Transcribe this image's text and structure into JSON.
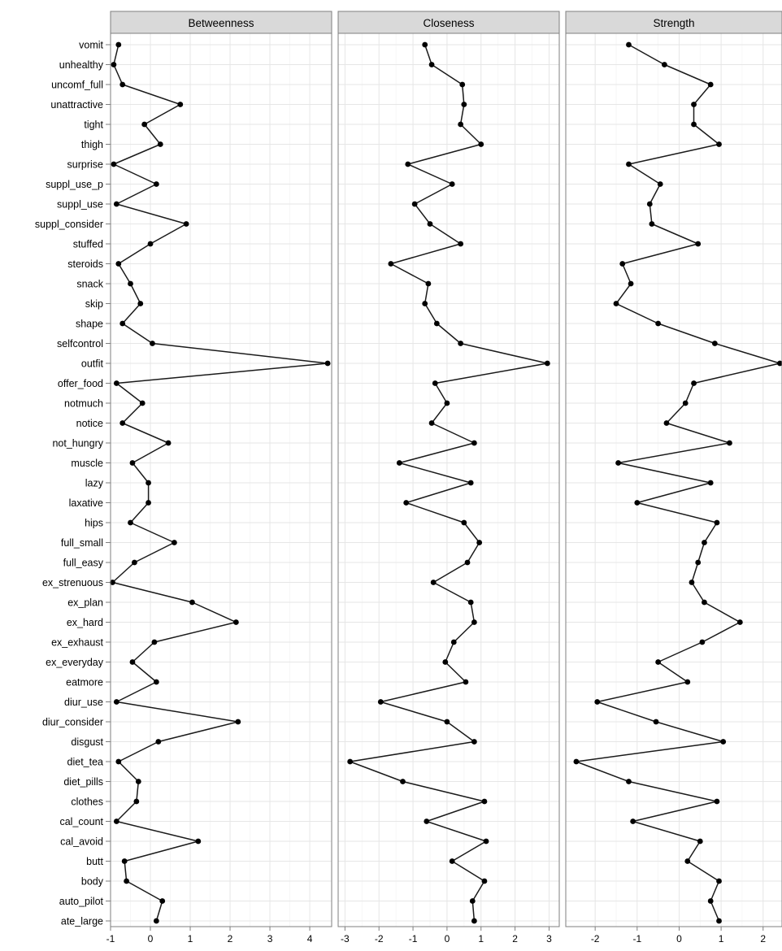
{
  "chart_data": {
    "type": "line",
    "facet_layout": "1 row x 3 panels, shared y axis",
    "grid": true,
    "legend": "none",
    "categories": [
      "vomit",
      "unhealthy",
      "uncomf_full",
      "unattractive",
      "tight",
      "thigh",
      "surprise",
      "suppl_use_p",
      "suppl_use",
      "suppl_consider",
      "stuffed",
      "steroids",
      "snack",
      "skip",
      "shape",
      "selfcontrol",
      "outfit",
      "offer_food",
      "notmuch",
      "notice",
      "not_hungry",
      "muscle",
      "lazy",
      "laxative",
      "hips",
      "full_small",
      "full_easy",
      "ex_strenuous",
      "ex_plan",
      "ex_hard",
      "ex_exhaust",
      "ex_everyday",
      "eatmore",
      "diur_use",
      "diur_consider",
      "disgust",
      "diet_tea",
      "diet_pills",
      "clothes",
      "cal_count",
      "cal_avoid",
      "butt",
      "body",
      "auto_pilot",
      "ate_large"
    ],
    "panels": [
      {
        "name": "Betweenness",
        "xlim": [
          -1.0,
          4.55
        ],
        "xticks": [
          "-1",
          "0",
          "1",
          "2",
          "3",
          "4"
        ],
        "xtick_values": [
          -1,
          0,
          1,
          2,
          3,
          4
        ],
        "values": [
          -0.8,
          -0.92,
          -0.7,
          0.75,
          -0.15,
          0.25,
          -0.92,
          0.15,
          -0.85,
          0.9,
          0.0,
          -0.8,
          -0.5,
          -0.25,
          -0.7,
          0.05,
          4.45,
          -0.85,
          -0.2,
          -0.7,
          0.45,
          -0.45,
          -0.05,
          -0.05,
          -0.5,
          0.6,
          -0.4,
          -0.95,
          1.05,
          2.15,
          0.1,
          -0.45,
          0.15,
          -0.85,
          2.2,
          0.2,
          -0.8,
          -0.3,
          -0.35,
          -0.85,
          1.2,
          -0.65,
          -0.6,
          0.3,
          0.15
        ]
      },
      {
        "name": "Closeness",
        "xlim": [
          -3.2,
          3.3
        ],
        "xticks": [
          "-3",
          "-2",
          "-1",
          "0",
          "1",
          "2",
          "3"
        ],
        "xtick_values": [
          -3,
          -2,
          -1,
          0,
          1,
          2,
          3
        ],
        "values": [
          -0.65,
          -0.45,
          0.45,
          0.5,
          0.4,
          1.0,
          -1.15,
          0.15,
          -0.95,
          -0.5,
          0.4,
          -1.65,
          -0.55,
          -0.65,
          -0.3,
          0.4,
          2.95,
          -0.35,
          0.0,
          -0.45,
          0.8,
          -1.4,
          0.7,
          -1.2,
          0.5,
          0.95,
          0.6,
          -0.4,
          0.7,
          0.8,
          0.2,
          -0.05,
          0.55,
          -1.95,
          0.0,
          0.8,
          -2.85,
          -1.3,
          1.1,
          -0.6,
          1.15,
          0.15,
          1.1,
          0.75,
          0.8
        ]
      },
      {
        "name": "Strength",
        "xlim": [
          -2.7,
          2.45
        ],
        "xticks": [
          "-2",
          "-1",
          "0",
          "1",
          "2"
        ],
        "xtick_values": [
          -2,
          -1,
          0,
          1,
          2
        ],
        "values": [
          -1.2,
          -0.35,
          0.75,
          0.35,
          0.35,
          0.95,
          -1.2,
          -0.45,
          -0.7,
          -0.65,
          0.45,
          -1.35,
          -1.15,
          -1.5,
          -0.5,
          0.85,
          2.4,
          0.35,
          0.15,
          -0.3,
          1.2,
          -1.45,
          0.75,
          -1.0,
          0.9,
          0.6,
          0.45,
          0.3,
          0.6,
          1.45,
          0.55,
          -0.5,
          0.2,
          -1.95,
          -0.55,
          1.05,
          -2.45,
          -1.2,
          0.9,
          -1.1,
          0.5,
          0.2,
          0.95,
          0.75,
          0.95
        ]
      }
    ]
  },
  "colors": {
    "panel_bg": "#ffffff",
    "grid_major": "#e6e6e6",
    "grid_minor": "#f4f4f4",
    "strip_bg": "#d9d9d9",
    "border": "#7f7f7f",
    "line": "#1a1a1a",
    "point": "#000000"
  }
}
